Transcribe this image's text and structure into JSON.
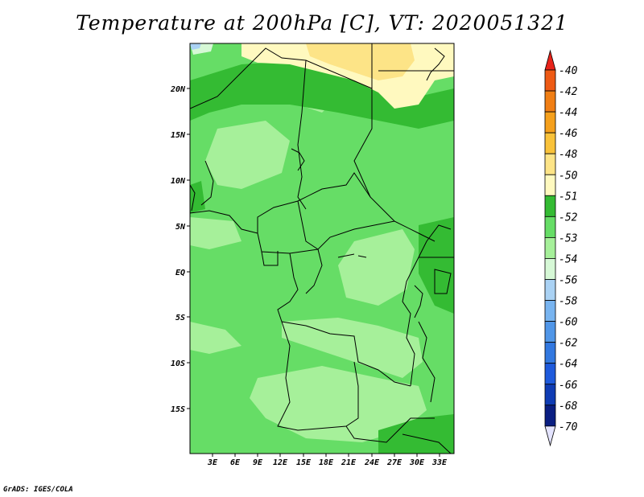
{
  "title": "Temperature at 200hPa [C], VT: 2020051321",
  "credit": "GrADS: IGES/COLA",
  "map": {
    "lat_labels": [
      "20N",
      "15N",
      "10N",
      "5N",
      "EQ",
      "5S",
      "10S",
      "15S"
    ],
    "lon_labels": [
      "3E",
      "6E",
      "9E",
      "12E",
      "15E",
      "18E",
      "21E",
      "24E",
      "27E",
      "30E",
      "33E"
    ]
  },
  "colorbar": {
    "labels": [
      "-40",
      "-42",
      "-44",
      "-46",
      "-48",
      "-50",
      "-51",
      "-52",
      "-53",
      "-54",
      "-56",
      "-58",
      "-60",
      "-62",
      "-64",
      "-66",
      "-68",
      "-70"
    ],
    "colors": [
      "#e8231a",
      "#ee5a14",
      "#f07e14",
      "#f5a01c",
      "#f9c23a",
      "#fde487",
      "#fff9bf",
      "#34bb33",
      "#66dd66",
      "#a6f09a",
      "#d6f8d6",
      "#aad2f4",
      "#78b4f0",
      "#5096e8",
      "#3278e0",
      "#1e5adc",
      "#0f3cb4",
      "#0a1e82",
      "#e4e4ff"
    ]
  }
}
